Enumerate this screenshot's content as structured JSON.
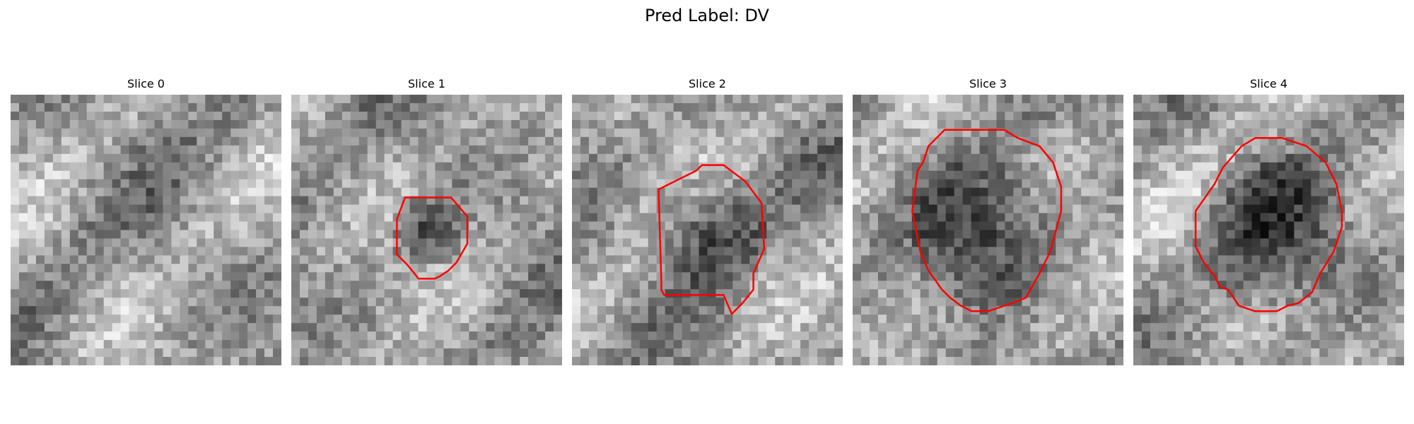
{
  "figure": {
    "title": "Pred Label: DV"
  },
  "contour_color": "#ff0000",
  "panels": [
    {
      "title": "Slice 0",
      "seed": 11,
      "dark_spot": null,
      "contour": null
    },
    {
      "title": "Slice 1",
      "seed": 27,
      "dark_spot": [
        0.5,
        0.5,
        0.14
      ],
      "contour": [
        [
          0.42,
          0.38
        ],
        [
          0.59,
          0.38
        ],
        [
          0.65,
          0.45
        ],
        [
          0.65,
          0.55
        ],
        [
          0.61,
          0.62
        ],
        [
          0.59,
          0.64
        ],
        [
          0.58,
          0.65
        ],
        [
          0.55,
          0.67
        ],
        [
          0.53,
          0.68
        ],
        [
          0.47,
          0.68
        ],
        [
          0.43,
          0.63
        ],
        [
          0.39,
          0.59
        ],
        [
          0.39,
          0.46
        ]
      ]
    },
    {
      "title": "Slice 2",
      "seed": 43,
      "dark_spot": [
        0.5,
        0.49,
        0.23
      ],
      "contour": [
        [
          0.4,
          0.31
        ],
        [
          0.46,
          0.28
        ],
        [
          0.48,
          0.26
        ],
        [
          0.56,
          0.26
        ],
        [
          0.6,
          0.29
        ],
        [
          0.64,
          0.32
        ],
        [
          0.7,
          0.4
        ],
        [
          0.71,
          0.57
        ],
        [
          0.67,
          0.66
        ],
        [
          0.67,
          0.72
        ],
        [
          0.63,
          0.77
        ],
        [
          0.59,
          0.81
        ],
        [
          0.56,
          0.74
        ],
        [
          0.34,
          0.74
        ],
        [
          0.33,
          0.72
        ],
        [
          0.33,
          0.69
        ],
        [
          0.32,
          0.36
        ],
        [
          0.32,
          0.35
        ]
      ]
    },
    {
      "title": "Slice 3",
      "seed": 59,
      "dark_spot": [
        0.5,
        0.5,
        0.3
      ],
      "contour": [
        [
          0.34,
          0.13
        ],
        [
          0.28,
          0.19
        ],
        [
          0.26,
          0.25
        ],
        [
          0.24,
          0.28
        ],
        [
          0.22,
          0.43
        ],
        [
          0.25,
          0.58
        ],
        [
          0.28,
          0.65
        ],
        [
          0.33,
          0.72
        ],
        [
          0.36,
          0.75
        ],
        [
          0.4,
          0.78
        ],
        [
          0.44,
          0.8
        ],
        [
          0.5,
          0.8
        ],
        [
          0.59,
          0.77
        ],
        [
          0.64,
          0.75
        ],
        [
          0.69,
          0.66
        ],
        [
          0.73,
          0.58
        ],
        [
          0.77,
          0.43
        ],
        [
          0.77,
          0.34
        ],
        [
          0.74,
          0.25
        ],
        [
          0.69,
          0.19
        ],
        [
          0.61,
          0.16
        ],
        [
          0.56,
          0.13
        ],
        [
          0.5,
          0.13
        ]
      ]
    },
    {
      "title": "Slice 4",
      "seed": 73,
      "dark_spot": [
        0.5,
        0.5,
        0.3
      ],
      "contour": [
        [
          0.33,
          0.27
        ],
        [
          0.3,
          0.33
        ],
        [
          0.23,
          0.43
        ],
        [
          0.23,
          0.56
        ],
        [
          0.26,
          0.62
        ],
        [
          0.3,
          0.67
        ],
        [
          0.32,
          0.71
        ],
        [
          0.35,
          0.72
        ],
        [
          0.39,
          0.78
        ],
        [
          0.45,
          0.8
        ],
        [
          0.49,
          0.8
        ],
        [
          0.53,
          0.8
        ],
        [
          0.57,
          0.78
        ],
        [
          0.61,
          0.77
        ],
        [
          0.66,
          0.73
        ],
        [
          0.69,
          0.66
        ],
        [
          0.74,
          0.58
        ],
        [
          0.77,
          0.49
        ],
        [
          0.77,
          0.43
        ],
        [
          0.75,
          0.33
        ],
        [
          0.71,
          0.25
        ],
        [
          0.64,
          0.19
        ],
        [
          0.55,
          0.16
        ],
        [
          0.45,
          0.16
        ],
        [
          0.4,
          0.19
        ]
      ]
    }
  ]
}
